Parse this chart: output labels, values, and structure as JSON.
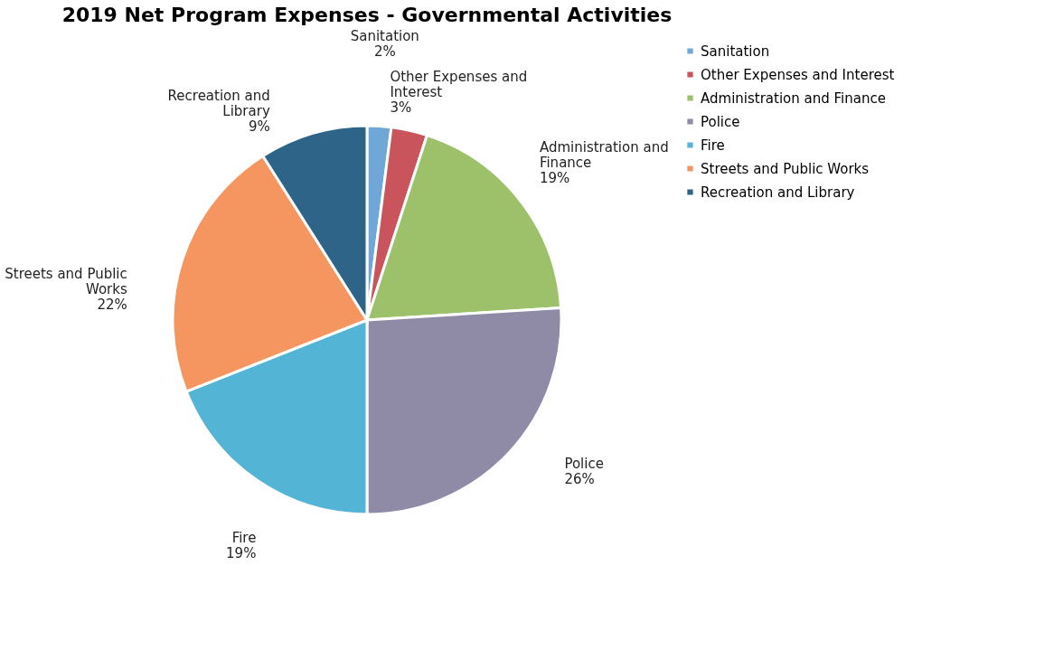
{
  "chart_data": {
    "type": "pie",
    "title": "2019 Net Program Expenses - Governmental Activities",
    "categories": [
      "Sanitation",
      "Other Expenses and Interest",
      "Administration and Finance",
      "Police",
      "Fire",
      "Streets and Public Works",
      "Recreation and Library"
    ],
    "values": [
      2,
      3,
      19,
      26,
      19,
      22,
      9
    ],
    "value_labels": [
      "2%",
      "3%",
      "19%",
      "26%",
      "19%",
      "22%",
      "9%"
    ],
    "colors": [
      "#6fa8d6",
      "#c9545c",
      "#9dc16a",
      "#8f8ba6",
      "#54b4d6",
      "#f5955f",
      "#2d6487"
    ],
    "legend": "right"
  }
}
